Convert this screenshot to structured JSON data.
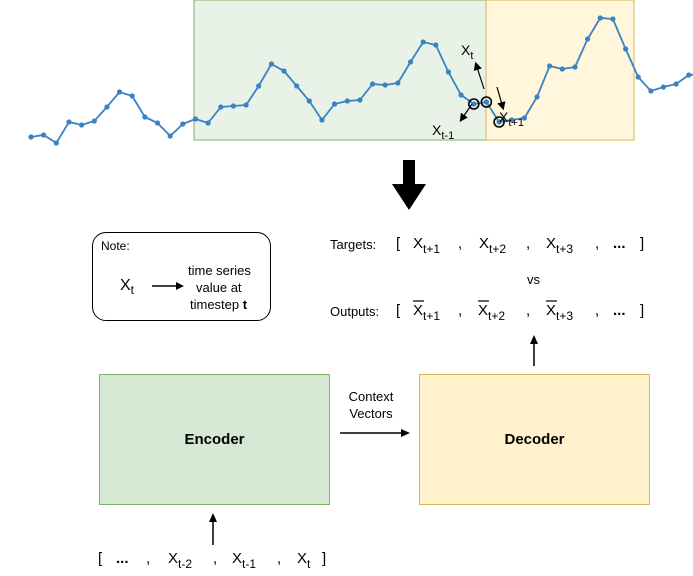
{
  "series": {
    "y": [
      137,
      135,
      143,
      122,
      125,
      121,
      107,
      92,
      96,
      117,
      123,
      136,
      124,
      119,
      123,
      107,
      106,
      105,
      86,
      64,
      71,
      86,
      101,
      120,
      104,
      101,
      100,
      84,
      85,
      83,
      62,
      42,
      45,
      72,
      95,
      104,
      102,
      122,
      120,
      118,
      97,
      66,
      69,
      67,
      39,
      18,
      19,
      49,
      77,
      91,
      87,
      84,
      75,
      74,
      83
    ],
    "window_start_index": 7,
    "split_index": 38,
    "highlight_indices": [
      35,
      36,
      37
    ]
  },
  "colors": {
    "series": "#3b82c4",
    "encoder_fill": "#d5e8d4",
    "encoder_border": "#82b366",
    "decoder_fill": "#fff2cc",
    "decoder_border": "#d6b656"
  },
  "labels": {
    "x": "X",
    "xt_sub": "t",
    "xt1_sub": "t+1",
    "xtm1_sub": "t-1"
  },
  "note": {
    "title": "Note:",
    "symbol": "X",
    "symbol_sub": "t",
    "line1": "time series",
    "line2": "value at",
    "line3_prefix": "timestep ",
    "line3_bold": "t"
  },
  "targets": {
    "label": "Targets:",
    "open": "[",
    "close": "]",
    "sep": ",",
    "ellipsis": "...",
    "items": [
      {
        "base": "X",
        "sub": "t+1"
      },
      {
        "base": "X",
        "sub": "t+2"
      },
      {
        "base": "X",
        "sub": "t+3"
      }
    ]
  },
  "vs": "vs",
  "outputs": {
    "label": "Outputs:",
    "open": "[",
    "close": "]",
    "sep": ",",
    "ellipsis": "...",
    "items": [
      {
        "base": "X",
        "sub": "t+1"
      },
      {
        "base": "X",
        "sub": "t+2"
      },
      {
        "base": "X",
        "sub": "t+3"
      }
    ]
  },
  "context": {
    "line1": "Context",
    "line2": "Vectors"
  },
  "encoder": {
    "label": "Encoder"
  },
  "decoder": {
    "label": "Decoder"
  },
  "inputs": {
    "open": "[",
    "close": "]",
    "sep": ",",
    "ellipsis": "...",
    "items": [
      {
        "base": "X",
        "sub": "t-2"
      },
      {
        "base": "X",
        "sub": "t-1"
      },
      {
        "base": "X",
        "sub": "t"
      }
    ]
  }
}
